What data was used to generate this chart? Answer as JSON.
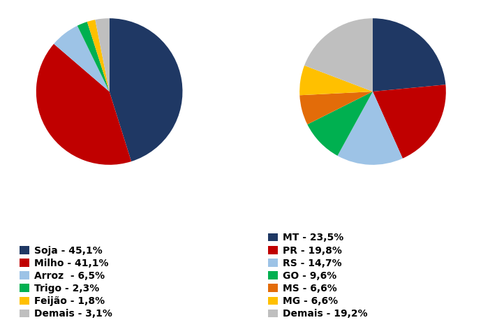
{
  "pie1": {
    "labels": [
      "Soja - 45,1%",
      "Milho - 41,1%",
      "Arroz  - 6,5%",
      "Trigo - 2,3%",
      "Feijão - 1,8%",
      "Demais - 3,1%"
    ],
    "values": [
      45.1,
      41.1,
      6.5,
      2.3,
      1.8,
      3.1
    ],
    "colors": [
      "#1f3864",
      "#c00000",
      "#9dc3e6",
      "#00b050",
      "#ffc000",
      "#bfbfbf"
    ],
    "startangle": 90
  },
  "pie2": {
    "labels": [
      "MT - 23,5%",
      "PR - 19,8%",
      "RS - 14,7%",
      "GO - 9,6%",
      "MS - 6,6%",
      "MG - 6,6%",
      "Demais - 19,2%"
    ],
    "values": [
      23.5,
      19.8,
      14.7,
      9.6,
      6.6,
      6.6,
      19.2
    ],
    "colors": [
      "#1f3864",
      "#c00000",
      "#9dc3e6",
      "#00b050",
      "#e36c09",
      "#ffc000",
      "#bfbfbf"
    ],
    "startangle": 90
  },
  "legend_fontsize": 10,
  "legend_fontweight": "bold",
  "background_color": "#ffffff"
}
